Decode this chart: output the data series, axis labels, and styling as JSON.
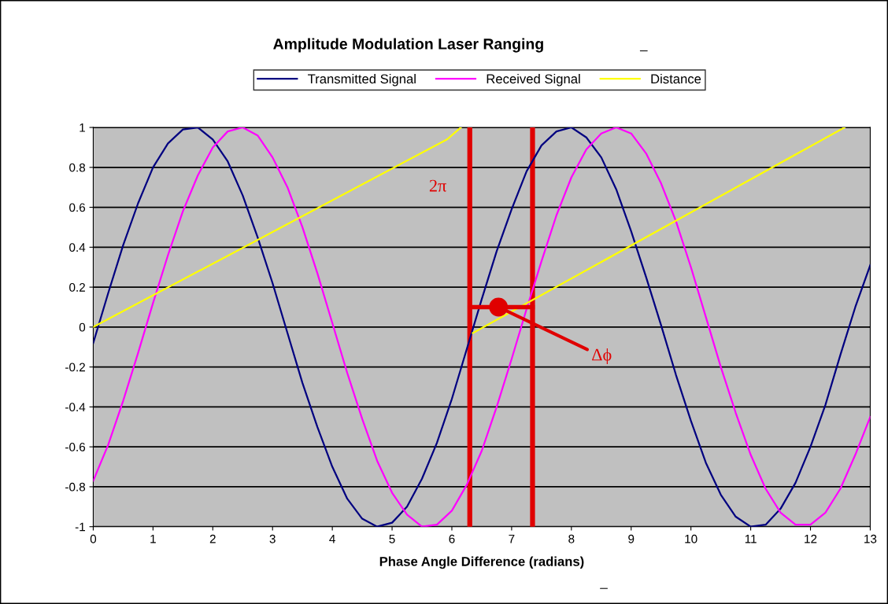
{
  "chart_data": {
    "type": "line",
    "title": "Amplitude Modulation Laser Ranging",
    "xlabel": "Phase Angle Difference (radians)",
    "x": [
      0,
      0.25,
      0.5,
      0.75,
      1,
      1.25,
      1.5,
      1.75,
      2,
      2.25,
      2.5,
      2.75,
      3,
      3.25,
      3.5,
      3.75,
      4,
      4.25,
      4.5,
      4.75,
      5,
      5.25,
      5.5,
      5.75,
      6,
      6.25,
      6.5,
      6.75,
      7,
      7.25,
      7.5,
      7.75,
      8,
      8.25,
      8.5,
      8.75,
      9,
      9.25,
      9.5,
      9.75,
      10,
      10.25,
      10.5,
      10.75,
      11,
      11.25,
      11.5,
      11.75,
      12,
      12.25,
      12.5,
      12.75,
      13
    ],
    "series": [
      {
        "name": "Transmitted Signal",
        "color": "#000080",
        "values": [
          -0.08,
          0.17,
          0.41,
          0.62,
          0.8,
          0.92,
          0.99,
          1.0,
          0.94,
          0.83,
          0.66,
          0.45,
          0.22,
          -0.03,
          -0.28,
          -0.5,
          -0.7,
          -0.86,
          -0.96,
          -1.0,
          -0.98,
          -0.9,
          -0.76,
          -0.58,
          -0.36,
          -0.11,
          0.14,
          0.38,
          0.59,
          0.78,
          0.91,
          0.98,
          1.0,
          0.95,
          0.85,
          0.69,
          0.48,
          0.25,
          0.01,
          -0.24,
          -0.47,
          -0.68,
          -0.84,
          -0.95,
          -1.0,
          -0.99,
          -0.91,
          -0.78,
          -0.6,
          -0.39,
          -0.14,
          0.1,
          0.31
        ]
      },
      {
        "name": "Received Signal",
        "color": "#ff00ff",
        "values": [
          -0.77,
          -0.59,
          -0.37,
          -0.13,
          0.12,
          0.36,
          0.58,
          0.76,
          0.9,
          0.98,
          1.0,
          0.96,
          0.85,
          0.7,
          0.5,
          0.27,
          0.02,
          -0.23,
          -0.46,
          -0.67,
          -0.83,
          -0.94,
          -1.0,
          -0.99,
          -0.92,
          -0.79,
          -0.62,
          -0.4,
          -0.16,
          0.09,
          0.33,
          0.56,
          0.75,
          0.89,
          0.97,
          1.0,
          0.97,
          0.87,
          0.72,
          0.53,
          0.3,
          0.05,
          -0.2,
          -0.43,
          -0.64,
          -0.81,
          -0.93,
          -0.99,
          -0.99,
          -0.93,
          -0.81,
          -0.64,
          -0.45
        ]
      },
      {
        "name": "Distance",
        "color": "#ffff00",
        "x": [
          0,
          5.92,
          6.15,
          6.25,
          6.35,
          12.57
        ],
        "values": [
          0,
          0.94,
          1.0,
          null,
          -0.03,
          1.0
        ]
      },
      {
        "color": "#e00000",
        "x": [
          6.3,
          7.35
        ],
        "values": [
          0.1,
          0.1
        ]
      },
      {
        "type": "scatter",
        "color": "#e00000",
        "marker": "circle",
        "x": [
          6.78
        ],
        "values": [
          0.1
        ]
      }
    ],
    "ref_lines": [
      {
        "axis": "x",
        "value": 6.3,
        "color": "#e00000"
      },
      {
        "axis": "x",
        "value": 7.35,
        "color": "#e00000"
      }
    ],
    "annotations": [
      "2π",
      {
        "text": "Δϕ",
        "x": 6.78,
        "y": 0.1
      },
      "_",
      "_"
    ],
    "xlim": [
      0,
      13
    ],
    "xticks": [
      0,
      1,
      2,
      3,
      4,
      5,
      6,
      7,
      8,
      9,
      10,
      11,
      12,
      13
    ],
    "ylim": [
      -1,
      1
    ],
    "yticks": [
      -1,
      -0.8,
      -0.6,
      -0.4,
      -0.2,
      0,
      0.2,
      0.4,
      0.6,
      0.8,
      1
    ],
    "grid": "y",
    "legend": "top"
  }
}
